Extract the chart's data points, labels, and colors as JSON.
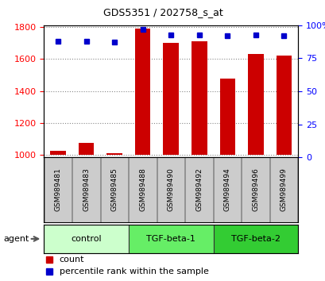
{
  "title": "GDS5351 / 202758_s_at",
  "samples": [
    "GSM989481",
    "GSM989483",
    "GSM989485",
    "GSM989488",
    "GSM989490",
    "GSM989492",
    "GSM989494",
    "GSM989496",
    "GSM989499"
  ],
  "counts": [
    1025,
    1075,
    1010,
    1790,
    1700,
    1710,
    1475,
    1630,
    1620
  ],
  "percentiles": [
    88,
    88,
    87,
    97,
    93,
    93,
    92,
    93,
    92
  ],
  "groups": [
    {
      "label": "control",
      "start": 0,
      "end": 3,
      "color": "#ccffcc"
    },
    {
      "label": "TGF-beta-1",
      "start": 3,
      "end": 6,
      "color": "#66ee66"
    },
    {
      "label": "TGF-beta-2",
      "start": 6,
      "end": 9,
      "color": "#33cc33"
    }
  ],
  "bar_color": "#cc0000",
  "dot_color": "#0000cc",
  "ylim_left": [
    985,
    1810
  ],
  "ylim_right": [
    0,
    100
  ],
  "yticks_left": [
    1000,
    1200,
    1400,
    1600,
    1800
  ],
  "yticks_right": [
    0,
    25,
    50,
    75,
    100
  ],
  "ytick_labels_right": [
    "0",
    "25",
    "50",
    "75",
    "100%"
  ],
  "bar_width": 0.55,
  "background_color": "#ffffff",
  "grid_color": "#888888",
  "agent_label": "agent",
  "bar_bottom": 1000
}
